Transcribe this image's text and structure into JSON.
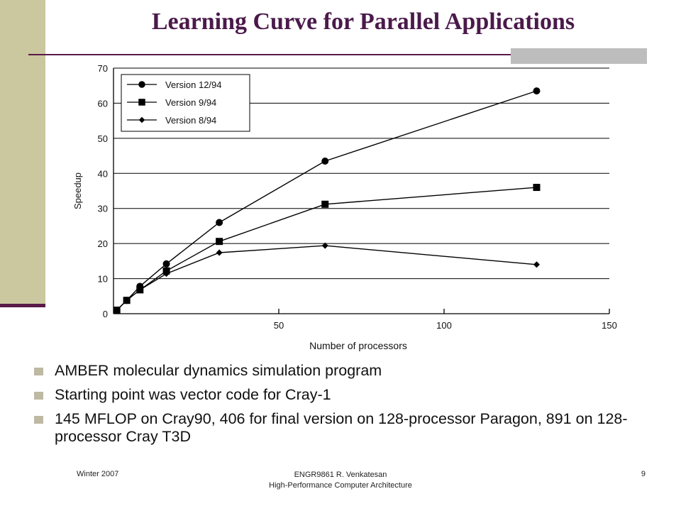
{
  "slide": {
    "title": "Learning Curve for Parallel Applications",
    "bullets": [
      "AMBER molecular dynamics simulation program",
      "Starting point was vector code for Cray-1",
      "145 MFLOP on Cray90, 406 for final version on 128-processor Paragon, 891 on 128-processor Cray T3D"
    ],
    "footer": {
      "left": "Winter 2007",
      "center_line1": "ENGR9861    R. Venkatesan",
      "center_line2": "High-Performance Computer Architecture",
      "page": "9"
    },
    "colors": {
      "sidebar": "#cbc79f",
      "accent": "#5a1a48",
      "title": "#4a1a4a"
    }
  },
  "chart_data": {
    "type": "line",
    "title": "",
    "xlabel": "Number of processors",
    "ylabel": "Speedup",
    "xlim": [
      0,
      150
    ],
    "ylim": [
      0,
      70
    ],
    "xticks": [
      50,
      100,
      150
    ],
    "yticks": [
      0,
      10,
      20,
      30,
      40,
      50,
      60,
      70
    ],
    "grid": "horizontal",
    "legend": "top-left",
    "series": [
      {
        "name": "Version 12/94",
        "marker": "circle",
        "x": [
          1,
          4,
          8,
          16,
          32,
          64,
          128
        ],
        "y": [
          1,
          3.8,
          7.8,
          14.2,
          26,
          43.5,
          63.5
        ]
      },
      {
        "name": "Version 9/94",
        "marker": "square",
        "x": [
          1,
          4,
          8,
          16,
          32,
          64,
          128
        ],
        "y": [
          1,
          3.8,
          6.8,
          12.2,
          20.6,
          31.2,
          36
        ]
      },
      {
        "name": "Version 8/94",
        "marker": "diamond",
        "x": [
          1,
          4,
          8,
          16,
          32,
          64,
          128
        ],
        "y": [
          1,
          3.8,
          6.8,
          11.4,
          17.4,
          19.4,
          14
        ]
      }
    ]
  }
}
